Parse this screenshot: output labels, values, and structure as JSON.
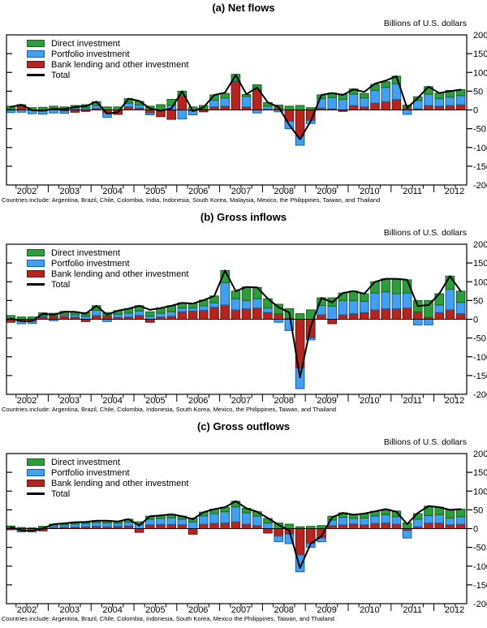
{
  "units_label": "Billions of U.S. dollars",
  "legend": {
    "direct": "Direct investment",
    "portfolio": "Portfolio investment",
    "bank": "Bank lending and other investment",
    "total": "Total"
  },
  "colors": {
    "direct": "#2d9c3c",
    "direct_border": "#15661f",
    "portfolio": "#41a1f0",
    "portfolio_border": "#1b5ea6",
    "bank": "#b5251f",
    "bank_border": "#701310",
    "total_line": "#000000"
  },
  "y_axis": {
    "min": -200,
    "max": 200,
    "step": 50,
    "tick_labels": [
      "200",
      "150",
      "100",
      "50",
      "0",
      "-50",
      "-100",
      "-150",
      "-200"
    ]
  },
  "x_axis": {
    "years": [
      "2002",
      "2003",
      "2004",
      "2005",
      "2006",
      "2007",
      "2008",
      "2009",
      "2010",
      "2011",
      "2012"
    ]
  },
  "chart_data": [
    {
      "type": "bar",
      "subtype": "stacked-bar-with-line",
      "title": "(a) Net flows",
      "footnote": "Countries include: Argentina, Brazil, Chile, Colombia, India, Indonesia, South Korea, Malaysia, Mexico, the Philippines, Taiwan, and Thailand",
      "ylim": [
        -200,
        200
      ],
      "stack_order": [
        "bank",
        "portfolio",
        "direct"
      ],
      "quarters": [
        "2002 Q1",
        "2002 Q2",
        "2002 Q3",
        "2002 Q4",
        "2003 Q1",
        "2003 Q2",
        "2003 Q3",
        "2003 Q4",
        "2004 Q1",
        "2004 Q2",
        "2004 Q3",
        "2004 Q4",
        "2005 Q1",
        "2005 Q2",
        "2005 Q3",
        "2005 Q4",
        "2006 Q1",
        "2006 Q2",
        "2006 Q3",
        "2006 Q4",
        "2007 Q1",
        "2007 Q2",
        "2007 Q3",
        "2007 Q4",
        "2008 Q1",
        "2008 Q2",
        "2008 Q3",
        "2008 Q4",
        "2009 Q1",
        "2009 Q2",
        "2009 Q3",
        "2009 Q4",
        "2010 Q1",
        "2010 Q2",
        "2010 Q3",
        "2010 Q4",
        "2011 Q1",
        "2011 Q2",
        "2011 Q3",
        "2011 Q4",
        "2012 Q1",
        "2012 Q2",
        "2012 Q3"
      ],
      "direct": [
        8,
        4,
        6,
        7,
        8,
        8,
        8,
        9,
        10,
        8,
        8,
        12,
        10,
        10,
        14,
        16,
        12,
        8,
        10,
        14,
        12,
        18,
        5,
        12,
        10,
        8,
        10,
        12,
        6,
        10,
        12,
        14,
        14,
        12,
        16,
        15,
        20,
        8,
        10,
        20,
        15,
        18,
        16
      ],
      "portfolio": [
        -7,
        -6,
        -10,
        -8,
        -8,
        -6,
        4,
        5,
        8,
        -12,
        0,
        10,
        8,
        -5,
        0,
        12,
        -24,
        -10,
        2,
        18,
        22,
        2,
        28,
        -8,
        8,
        -5,
        -20,
        -24,
        -8,
        25,
        30,
        28,
        30,
        24,
        34,
        38,
        42,
        -12,
        22,
        30,
        20,
        22,
        24
      ],
      "bank": [
        2,
        10,
        0,
        -3,
        2,
        -3,
        -6,
        -4,
        4,
        -8,
        -12,
        8,
        5,
        -8,
        -18,
        -25,
        38,
        -3,
        -5,
        8,
        10,
        75,
        8,
        55,
        2,
        5,
        -30,
        -70,
        -28,
        5,
        3,
        -4,
        12,
        8,
        18,
        22,
        28,
        5,
        3,
        12,
        10,
        12,
        14
      ],
      "total": [
        8,
        14,
        -1,
        -2,
        3,
        2,
        8,
        10,
        22,
        -10,
        -6,
        30,
        24,
        4,
        -2,
        4,
        50,
        -3,
        7,
        40,
        46,
        93,
        42,
        60,
        20,
        8,
        -40,
        -78,
        -30,
        40,
        45,
        40,
        55,
        48,
        70,
        78,
        90,
        5,
        32,
        62,
        45,
        50,
        54
      ]
    },
    {
      "type": "bar",
      "subtype": "stacked-bar-with-line",
      "title": "(b) Gross inflows",
      "footnote": "Countries include: Argentina, Brazil, Chile, Colombia, Indonesia, South Korea, Mexico, the Philippines, Taiwan, and Thailand",
      "ylim": [
        -200,
        200
      ],
      "stack_order": [
        "bank",
        "portfolio",
        "direct"
      ],
      "quarters": [
        "2002 Q1",
        "2002 Q2",
        "2002 Q3",
        "2002 Q4",
        "2003 Q1",
        "2003 Q2",
        "2003 Q3",
        "2003 Q4",
        "2004 Q1",
        "2004 Q2",
        "2004 Q3",
        "2004 Q4",
        "2005 Q1",
        "2005 Q2",
        "2005 Q3",
        "2005 Q4",
        "2006 Q1",
        "2006 Q2",
        "2006 Q3",
        "2006 Q4",
        "2007 Q1",
        "2007 Q2",
        "2007 Q3",
        "2007 Q4",
        "2008 Q1",
        "2008 Q2",
        "2008 Q3",
        "2008 Q4",
        "2009 Q1",
        "2009 Q2",
        "2009 Q3",
        "2009 Q4",
        "2010 Q1",
        "2010 Q2",
        "2010 Q3",
        "2010 Q4",
        "2011 Q1",
        "2011 Q2",
        "2011 Q3",
        "2011 Q4",
        "2012 Q1",
        "2012 Q2",
        "2012 Q3"
      ],
      "direct": [
        8,
        6,
        6,
        8,
        8,
        9,
        8,
        10,
        12,
        10,
        10,
        12,
        14,
        12,
        14,
        16,
        14,
        12,
        15,
        18,
        32,
        20,
        36,
        30,
        25,
        25,
        25,
        15,
        25,
        20,
        22,
        20,
        25,
        20,
        30,
        35,
        40,
        35,
        30,
        45,
        30,
        35,
        30
      ],
      "portfolio": [
        2,
        -8,
        -6,
        3,
        -4,
        4,
        6,
        8,
        14,
        -6,
        8,
        10,
        12,
        8,
        10,
        12,
        10,
        8,
        12,
        12,
        60,
        30,
        22,
        25,
        12,
        -8,
        -30,
        -55,
        -5,
        25,
        35,
        38,
        35,
        30,
        45,
        45,
        40,
        40,
        -15,
        -15,
        20,
        55,
        30
      ],
      "bank": [
        -8,
        -4,
        -5,
        6,
        8,
        8,
        6,
        -6,
        10,
        8,
        5,
        6,
        10,
        -8,
        6,
        8,
        20,
        22,
        24,
        32,
        38,
        25,
        28,
        30,
        18,
        15,
        3,
        -130,
        -50,
        12,
        -12,
        12,
        15,
        18,
        25,
        28,
        28,
        30,
        20,
        5,
        18,
        25,
        15
      ],
      "total": [
        2,
        -5,
        -5,
        15,
        12,
        20,
        20,
        15,
        36,
        12,
        23,
        28,
        36,
        25,
        30,
        36,
        44,
        42,
        51,
        62,
        130,
        75,
        86,
        85,
        55,
        32,
        18,
        -155,
        -20,
        57,
        45,
        70,
        75,
        68,
        100,
        108,
        108,
        105,
        35,
        38,
        68,
        115,
        75
      ]
    },
    {
      "type": "bar",
      "subtype": "stacked-bar-with-line",
      "title": "(c) Gross outflows",
      "footnote": "Countries include: Argentina, Brazil, Chile, Colombia, Indonesia, South Korea, Mexico the Philippines, Taiwan, and Thailand",
      "ylim": [
        -200,
        200
      ],
      "stack_order": [
        "bank",
        "portfolio",
        "direct"
      ],
      "quarters": [
        "2002 Q1",
        "2002 Q2",
        "2002 Q3",
        "2002 Q4",
        "2003 Q1",
        "2003 Q2",
        "2003 Q3",
        "2003 Q4",
        "2004 Q1",
        "2004 Q2",
        "2004 Q3",
        "2004 Q4",
        "2005 Q1",
        "2005 Q2",
        "2005 Q3",
        "2005 Q4",
        "2006 Q1",
        "2006 Q2",
        "2006 Q3",
        "2006 Q4",
        "2007 Q1",
        "2007 Q2",
        "2007 Q3",
        "2007 Q4",
        "2008 Q1",
        "2008 Q2",
        "2008 Q3",
        "2008 Q4",
        "2009 Q1",
        "2009 Q2",
        "2009 Q3",
        "2009 Q4",
        "2010 Q1",
        "2010 Q2",
        "2010 Q3",
        "2010 Q4",
        "2011 Q1",
        "2011 Q2",
        "2011 Q3",
        "2011 Q4",
        "2012 Q1",
        "2012 Q2",
        "2012 Q3"
      ],
      "direct": [
        3,
        3,
        2,
        3,
        4,
        4,
        5,
        5,
        5,
        6,
        5,
        8,
        6,
        8,
        8,
        9,
        8,
        10,
        10,
        12,
        12,
        15,
        12,
        12,
        12,
        15,
        12,
        5,
        6,
        8,
        10,
        12,
        10,
        12,
        12,
        14,
        15,
        15,
        15,
        25,
        20,
        22,
        20
      ],
      "portfolio": [
        4,
        -5,
        -4,
        3,
        5,
        6,
        8,
        8,
        10,
        10,
        8,
        10,
        12,
        15,
        16,
        18,
        15,
        18,
        22,
        26,
        30,
        40,
        30,
        25,
        15,
        -15,
        -25,
        -45,
        -10,
        -10,
        15,
        20,
        15,
        18,
        20,
        22,
        20,
        -20,
        20,
        20,
        22,
        18,
        20
      ],
      "bank": [
        -3,
        -4,
        -5,
        -6,
        3,
        4,
        4,
        5,
        6,
        5,
        6,
        7,
        -10,
        10,
        11,
        11,
        10,
        -15,
        12,
        14,
        15,
        18,
        12,
        8,
        -12,
        -20,
        -15,
        -70,
        -40,
        -25,
        8,
        10,
        12,
        10,
        14,
        15,
        12,
        -5,
        5,
        15,
        15,
        10,
        12
      ],
      "total": [
        4,
        -5,
        -6,
        0,
        12,
        14,
        17,
        18,
        21,
        21,
        19,
        25,
        8,
        33,
        35,
        38,
        33,
        25,
        44,
        52,
        57,
        73,
        54,
        45,
        28,
        10,
        -5,
        -105,
        -40,
        -20,
        30,
        42,
        37,
        40,
        46,
        52,
        45,
        12,
        42,
        60,
        57,
        50,
        52
      ]
    }
  ]
}
